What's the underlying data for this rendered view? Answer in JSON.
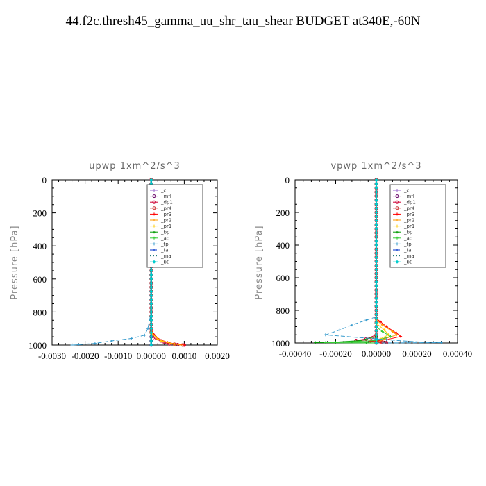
{
  "title": "44.f2c.thresh45_gamma_uu_shr_tau_shear  BUDGET at340E,-60N",
  "chart_data": [
    {
      "type": "line",
      "title": "upwp   1xm^2/s^3",
      "xlabel": "",
      "ylabel": "Pressure  [hPa]",
      "xlim": [
        -0.003,
        0.002
      ],
      "ylim": [
        1000,
        0
      ],
      "xticks": [
        -0.003,
        -0.002,
        -0.001,
        0.0,
        0.001,
        0.002
      ],
      "xtick_labels": [
        "-0.0030",
        "-0.0020",
        "-0.0010",
        "0.00000",
        "0.0010",
        "0.0020"
      ],
      "yticks": [
        0,
        200,
        400,
        600,
        800,
        1000
      ],
      "ytick_labels": [
        "0",
        "200",
        "400",
        "600",
        "800",
        "1000"
      ],
      "legend_position": "top-right",
      "series": [
        {
          "name": "_cl",
          "color": "#9966cc",
          "marker": "cross",
          "dash": "",
          "points": [
            [
              0,
              0
            ],
            [
              0,
              1000
            ]
          ]
        },
        {
          "name": "_mfl",
          "color": "#660066",
          "marker": "circle",
          "dash": "",
          "points": [
            [
              0,
              0
            ],
            [
              0,
              1000
            ]
          ]
        },
        {
          "name": "_dp1",
          "color": "#cc0033",
          "marker": "circle",
          "dash": "",
          "points": [
            [
              0,
              0
            ],
            [
              0,
              900
            ],
            [
              0.0001,
              960
            ],
            [
              0.0004,
              985
            ],
            [
              0.00055,
              993
            ],
            [
              0.0008,
              998
            ],
            [
              0.001,
              1000
            ]
          ]
        },
        {
          "name": "_pr4",
          "color": "#cc3333",
          "marker": "circle",
          "dash": "",
          "points": [
            [
              0,
              0
            ],
            [
              0,
              920
            ],
            [
              0.0003,
              975
            ],
            [
              0.0007,
              995
            ],
            [
              0.00095,
              1000
            ]
          ]
        },
        {
          "name": "_pr3",
          "color": "#ff0000",
          "marker": "cross",
          "dash": "",
          "points": [
            [
              0,
              0
            ],
            [
              0,
              910
            ],
            [
              0.0002,
              960
            ],
            [
              0.0005,
              985
            ],
            [
              0.0009,
              998
            ],
            [
              0.001,
              1000
            ]
          ]
        },
        {
          "name": "_pr2",
          "color": "#ff9900",
          "marker": "cross",
          "dash": "",
          "points": [
            [
              0,
              0
            ],
            [
              0,
              920
            ],
            [
              0.0002,
              965
            ],
            [
              0.0006,
              990
            ],
            [
              0.0009,
              1000
            ]
          ]
        },
        {
          "name": "_pr1",
          "color": "#ffcc00",
          "marker": "cross",
          "dash": "",
          "points": [
            [
              0,
              0
            ],
            [
              0,
              930
            ],
            [
              0.0003,
              975
            ],
            [
              0.0007,
              995
            ]
          ]
        },
        {
          "name": "_bp",
          "color": "#009900",
          "marker": "cross",
          "dash": "",
          "points": [
            [
              0,
              0
            ],
            [
              0,
              1000
            ]
          ]
        },
        {
          "name": "_ac",
          "color": "#33cc33",
          "marker": "cross",
          "dash": "",
          "points": [
            [
              0,
              0
            ],
            [
              0,
              1000
            ]
          ]
        },
        {
          "name": "_tp",
          "color": "#3399cc",
          "marker": "cross",
          "dash": "6,3",
          "points": [
            [
              0,
              0
            ],
            [
              0,
              800
            ],
            [
              -0.0001,
              900
            ],
            [
              -0.0002,
              940
            ],
            [
              -0.0006,
              960
            ],
            [
              -0.0012,
              975
            ],
            [
              -0.0017,
              990
            ],
            [
              -0.0022,
              998
            ],
            [
              -0.0024,
              1000
            ]
          ]
        },
        {
          "name": "_ta",
          "color": "#0033cc",
          "marker": "cross",
          "dash": "4,2",
          "points": [
            [
              0,
              0
            ],
            [
              0,
              1000
            ]
          ]
        },
        {
          "name": "_ma",
          "color": "#006666",
          "marker": "none",
          "dash": "2,2",
          "points": [
            [
              0,
              0
            ],
            [
              0,
              1000
            ]
          ]
        },
        {
          "name": "_bt",
          "color": "#00cccc",
          "marker": "diamond",
          "dash": "",
          "points": [
            [
              0,
              0
            ],
            [
              0,
              1000
            ]
          ]
        }
      ]
    },
    {
      "type": "line",
      "title": "vpwp   1xm^2/s^3",
      "xlabel": "",
      "ylabel": "Pressure  [hPa]",
      "xlim": [
        -0.0004,
        0.0004
      ],
      "ylim": [
        1000,
        0
      ],
      "xticks": [
        -0.0004,
        -0.0002,
        0.0,
        0.0002,
        0.0004
      ],
      "xtick_labels": [
        "-0.00040",
        "-0.00020",
        "0.00000",
        "0.00020",
        "0.00040"
      ],
      "yticks": [
        0,
        200,
        400,
        600,
        800,
        1000
      ],
      "ytick_labels": [
        "0",
        "200",
        "400",
        "600",
        "800",
        "1000"
      ],
      "legend_position": "top-right",
      "series": [
        {
          "name": "_cl",
          "color": "#9966cc",
          "marker": "cross",
          "dash": "",
          "points": [
            [
              0,
              0
            ],
            [
              0,
              1000
            ]
          ]
        },
        {
          "name": "_mfl",
          "color": "#660066",
          "marker": "circle",
          "dash": "",
          "points": [
            [
              0,
              0
            ],
            [
              0,
              1000
            ]
          ]
        },
        {
          "name": "_dp1",
          "color": "#cc0033",
          "marker": "circle",
          "dash": "",
          "points": [
            [
              0,
              0
            ],
            [
              0,
              950
            ],
            [
              -5e-05,
              975
            ],
            [
              -0.0001,
              985
            ],
            [
              2e-05,
              990
            ],
            [
              5e-05,
              998
            ],
            [
              0,
              1000
            ]
          ]
        },
        {
          "name": "_pr4",
          "color": "#cc3333",
          "marker": "circle",
          "dash": "",
          "points": [
            [
              0,
              0
            ],
            [
              0,
              960
            ],
            [
              -3e-05,
              980
            ],
            [
              3e-05,
              995
            ],
            [
              0,
              1000
            ]
          ]
        },
        {
          "name": "_pr3",
          "color": "#ff0000",
          "marker": "cross",
          "dash": "",
          "points": [
            [
              0,
              0
            ],
            [
              0,
              850
            ],
            [
              2e-05,
              870
            ],
            [
              5e-05,
              900
            ],
            [
              0.0001,
              940
            ],
            [
              0.00012,
              960
            ],
            [
              5e-05,
              980
            ],
            [
              -3e-05,
              990
            ],
            [
              2e-05,
              1000
            ]
          ]
        },
        {
          "name": "_pr2",
          "color": "#ff9900",
          "marker": "cross",
          "dash": "",
          "points": [
            [
              0,
              0
            ],
            [
              0,
              860
            ],
            [
              3e-05,
              890
            ],
            [
              8e-05,
              930
            ],
            [
              0.0001,
              950
            ],
            [
              4e-05,
              975
            ],
            [
              0,
              1000
            ]
          ]
        },
        {
          "name": "_pr1",
          "color": "#ffcc00",
          "marker": "cross",
          "dash": "",
          "points": [
            [
              0,
              0
            ],
            [
              0,
              880
            ],
            [
              4e-05,
              920
            ],
            [
              6e-05,
              950
            ],
            [
              2e-05,
              975
            ]
          ]
        },
        {
          "name": "_bp",
          "color": "#009900",
          "marker": "cross",
          "dash": "",
          "points": [
            [
              0,
              0
            ],
            [
              0,
              960
            ],
            [
              -8e-05,
              985
            ],
            [
              -0.0002,
              995
            ],
            [
              -0.0003,
              998
            ],
            [
              -5e-05,
              999
            ],
            [
              0,
              1000
            ]
          ]
        },
        {
          "name": "_ac",
          "color": "#33cc33",
          "marker": "cross",
          "dash": "",
          "points": [
            [
              0,
              0
            ],
            [
              0,
              900
            ],
            [
              3e-05,
              930
            ],
            [
              7e-05,
              960
            ],
            [
              0.0,
              985
            ],
            [
              -0.00025,
              998
            ],
            [
              0,
              1000
            ]
          ]
        },
        {
          "name": "_tp",
          "color": "#3399cc",
          "marker": "cross",
          "dash": "6,3",
          "points": [
            [
              0,
              0
            ],
            [
              0,
              840
            ],
            [
              -5e-05,
              860
            ],
            [
              -0.00012,
              890
            ],
            [
              -0.00018,
              920
            ],
            [
              -0.00025,
              950
            ],
            [
              5e-05,
              980
            ],
            [
              0.0002,
              993
            ],
            [
              0.00032,
              998
            ],
            [
              0,
              1000
            ]
          ]
        },
        {
          "name": "_ta",
          "color": "#0033cc",
          "marker": "cross",
          "dash": "4,2",
          "points": [
            [
              0,
              0
            ],
            [
              0,
              1000
            ]
          ]
        },
        {
          "name": "_ma",
          "color": "#006666",
          "marker": "none",
          "dash": "2,2",
          "points": [
            [
              0,
              0
            ],
            [
              0,
              1000
            ]
          ]
        },
        {
          "name": "_bt",
          "color": "#00cccc",
          "marker": "diamond",
          "dash": "",
          "points": [
            [
              0,
              0
            ],
            [
              0,
              1000
            ]
          ]
        }
      ]
    }
  ]
}
